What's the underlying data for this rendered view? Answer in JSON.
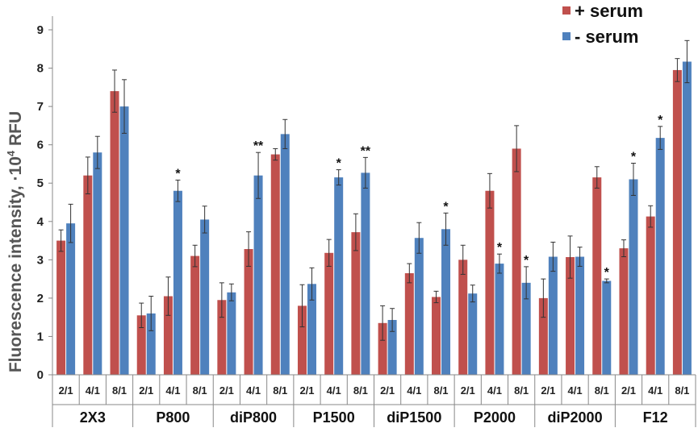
{
  "chart_data": {
    "type": "bar",
    "ylabel": "Fluorescence intensity, ·10",
    "ylabel_sup": "4",
    "ylabel_unit": " RFU",
    "ylim": [
      0,
      9
    ],
    "yticks": [
      "0",
      "1",
      "2",
      "3",
      "4",
      "5",
      "6",
      "7",
      "8",
      "9"
    ],
    "grid": false,
    "legend_position": "top-right",
    "groups": [
      "2X3",
      "P800",
      "diP800",
      "P1500",
      "diP1500",
      "P2000",
      "diP2000",
      "F12"
    ],
    "ratios": [
      "2/1",
      "4/1",
      "8/1"
    ],
    "categories": [
      "2X3 2/1",
      "2X3 4/1",
      "2X3 8/1",
      "P800 2/1",
      "P800 4/1",
      "P800 8/1",
      "diP800 2/1",
      "diP800 4/1",
      "diP800 8/1",
      "P1500 2/1",
      "P1500 4/1",
      "P1500 8/1",
      "diP1500 2/1",
      "diP1500 4/1",
      "diP1500 8/1",
      "P2000 2/1",
      "P2000 4/1",
      "P2000 8/1",
      "diP2000 2/1",
      "diP2000 4/1",
      "diP2000 8/1",
      "F12 2/1",
      "F12 4/1",
      "F12 8/1"
    ],
    "series": [
      {
        "name": "+ serum",
        "color": "#c0504d",
        "values": [
          3.5,
          5.2,
          7.4,
          1.55,
          2.05,
          3.1,
          1.95,
          3.28,
          5.75,
          1.8,
          3.18,
          3.72,
          1.35,
          2.65,
          2.03,
          3.0,
          4.8,
          5.9,
          2.0,
          3.07,
          5.15,
          3.3,
          4.13,
          7.95
        ],
        "errors": [
          0.28,
          0.48,
          0.55,
          0.32,
          0.5,
          0.28,
          0.45,
          0.45,
          0.15,
          0.55,
          0.35,
          0.48,
          0.45,
          0.25,
          0.15,
          0.38,
          0.45,
          0.6,
          0.5,
          0.55,
          0.28,
          0.22,
          0.28,
          0.3
        ],
        "stars": [
          "",
          "",
          "",
          "",
          "",
          "",
          "",
          "",
          "",
          "",
          "",
          "",
          "",
          "",
          "",
          "",
          "",
          "",
          "",
          "",
          "",
          "",
          "",
          ""
        ]
      },
      {
        "name": "- serum",
        "color": "#4f81bd",
        "values": [
          3.95,
          5.8,
          7.0,
          1.6,
          4.8,
          4.05,
          2.15,
          5.2,
          6.28,
          2.37,
          5.15,
          5.27,
          1.43,
          3.57,
          3.8,
          2.12,
          2.9,
          2.4,
          3.08,
          3.08,
          2.45,
          5.1,
          6.18,
          8.17
        ],
        "errors": [
          0.5,
          0.42,
          0.7,
          0.45,
          0.28,
          0.35,
          0.22,
          0.6,
          0.38,
          0.42,
          0.2,
          0.4,
          0.3,
          0.4,
          0.42,
          0.22,
          0.25,
          0.42,
          0.38,
          0.25,
          0.05,
          0.42,
          0.3,
          0.55
        ],
        "stars": [
          "",
          "",
          "",
          "",
          "*",
          "",
          "",
          "**",
          "",
          "",
          "*",
          "**",
          "",
          "",
          "*",
          "",
          "*",
          "*",
          "",
          "",
          "*",
          "*",
          "*",
          ""
        ]
      }
    ]
  }
}
